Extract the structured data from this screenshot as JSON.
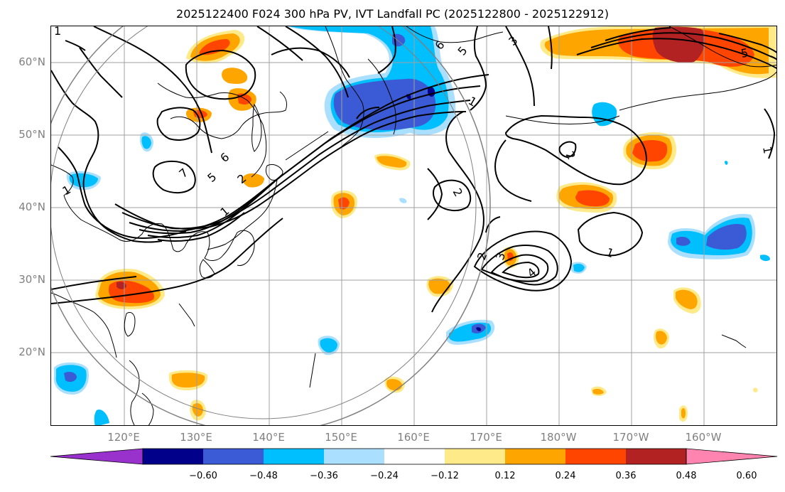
{
  "title": "2025122400 F024 300 hPa PV, IVT Landfall PC (2025122800 - 2025122912)",
  "lat_labels": [
    "60°N",
    "50°N",
    "40°N",
    "30°N",
    "20°N"
  ],
  "lon_labels": [
    "120°E",
    "130°E",
    "140°E",
    "150°E",
    "160°E",
    "170°E",
    "180°W",
    "170°W",
    "160°W"
  ],
  "colorbar": {
    "colors": [
      "#9932cc",
      "#00008b",
      "#3a5bd5",
      "#00bfff",
      "#abdfff",
      "#ffffff",
      "#ffea8a",
      "#ffa500",
      "#ff4500",
      "#b22222",
      "#ff85b0"
    ],
    "tick_labels": [
      "−0.60",
      "−0.48",
      "−0.36",
      "−0.24",
      "−0.12",
      "0.12",
      "0.24",
      "0.36",
      "0.48",
      "0.60"
    ]
  },
  "contour_labels": [
    "1",
    "2",
    "3",
    "4",
    "5",
    "6",
    "7"
  ],
  "colors": {
    "grid": "#a0a0a0",
    "contour": "#000000",
    "ring": "#808080",
    "axis_label": "#808080"
  }
}
